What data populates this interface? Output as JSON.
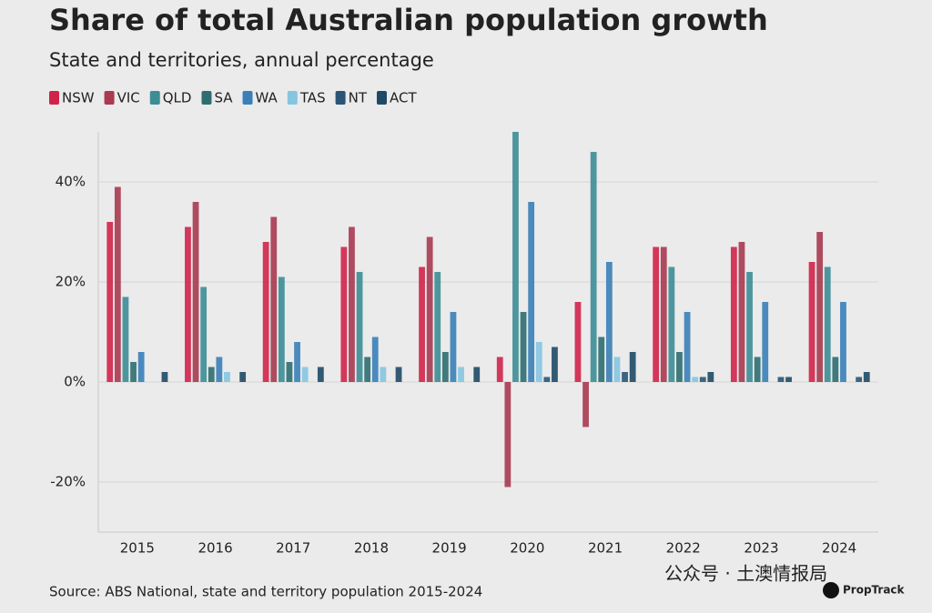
{
  "chart_data": {
    "type": "bar",
    "title": "Share of total Australian population growth",
    "subtitle": "State and territories, annual percentage",
    "source": "Source: ABS National, state and territory population 2015-2024",
    "watermark": "公众号 · 土澳情报局",
    "brand": "PropTrack",
    "categories": [
      "2015",
      "2016",
      "2017",
      "2018",
      "2019",
      "2020",
      "2021",
      "2022",
      "2023",
      "2024"
    ],
    "series": [
      {
        "name": "NSW",
        "color": "#d0234a",
        "values": [
          32,
          31,
          28,
          27,
          23,
          5,
          16,
          27,
          27,
          24
        ]
      },
      {
        "name": "VIC",
        "color": "#a93a50",
        "values": [
          39,
          36,
          33,
          31,
          29,
          -21,
          -9,
          27,
          28,
          30
        ]
      },
      {
        "name": "QLD",
        "color": "#3d8d96",
        "values": [
          17,
          19,
          21,
          22,
          22,
          50,
          46,
          23,
          22,
          23
        ]
      },
      {
        "name": "SA",
        "color": "#2f6e70",
        "values": [
          4,
          3,
          4,
          5,
          6,
          14,
          9,
          6,
          5,
          5
        ]
      },
      {
        "name": "WA",
        "color": "#3a7fb8",
        "values": [
          6,
          5,
          8,
          9,
          14,
          36,
          24,
          14,
          16,
          16
        ]
      },
      {
        "name": "TAS",
        "color": "#86c5e0",
        "values": [
          0,
          2,
          3,
          3,
          3,
          8,
          5,
          1,
          0,
          0
        ]
      },
      {
        "name": "NT",
        "color": "#2a5576",
        "values": [
          0,
          0,
          0,
          0,
          0,
          1,
          2,
          1,
          1,
          1
        ]
      },
      {
        "name": "ACT",
        "color": "#1f4a66",
        "values": [
          2,
          2,
          3,
          3,
          3,
          7,
          6,
          2,
          1,
          2
        ]
      }
    ],
    "ylim": [
      -30,
      50
    ],
    "yticks": [
      {
        "value": -20,
        "label": "-20%"
      },
      {
        "value": 0,
        "label": "0%"
      },
      {
        "value": 20,
        "label": "20%"
      },
      {
        "value": 40,
        "label": "40%"
      }
    ],
    "grid": true
  }
}
